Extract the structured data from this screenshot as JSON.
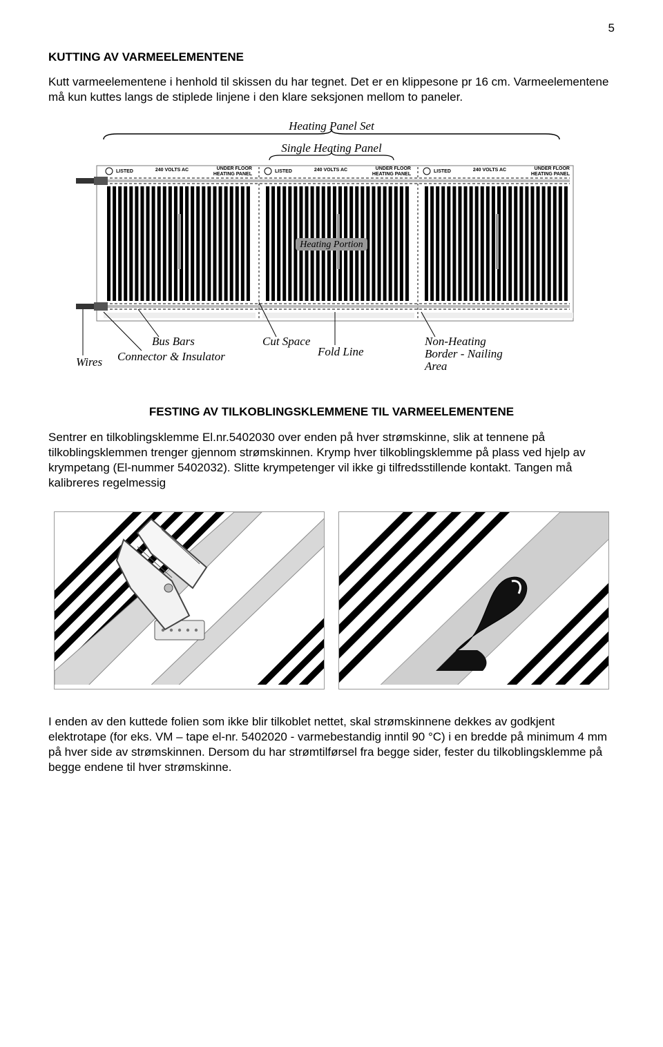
{
  "page_number": "5",
  "section1": {
    "title": "KUTTING AV VARMEELEMENTENE",
    "para": "Kutt varmeelementene i henhold til skissen du har tegnet. Det er en klippesone pr 16 cm. Varmeelementene må kun kuttes langs de stiplede linjene i den klare seksjonen mellom to paneler."
  },
  "diagram1": {
    "top_label": "Heating Panel Set",
    "sub_label": "Single Heating Panel",
    "center_label": "Heating Portion",
    "panel_header": {
      "volts": "240 VOLTS AC",
      "under": "UNDER FLOOR",
      "heating": "HEATING PANEL",
      "listed": "LISTED"
    },
    "bottom_labels": {
      "wires": "Wires",
      "bus_bars": "Bus Bars",
      "connector": "Connector & Insulator",
      "cut_space": "Cut Space",
      "fold_line": "Fold Line",
      "non_heating": "Non-Heating",
      "border": "Border - Nailing",
      "area": "Area"
    },
    "bar_color": "#000000",
    "border_color": "#888888",
    "background": "#ffffff"
  },
  "section2": {
    "title": "FESTING AV TILKOBLINGSKLEMMENE TIL VARMEELEMENTENE",
    "para": "Sentrer en tilkoblingsklemme El.nr.5402030 over enden på hver strømskinne, slik at tennene på tilkoblingsklemmen trenger gjennom strømskinnen. Krymp hver tilkoblingsklemme på plass ved hjelp av krympetang (El-nummer 5402032). Slitte krympetenger vil ikke gi tilfredsstillende kontakt. Tangen må kalibreres regelmessig"
  },
  "section3": {
    "para": "I enden av den kuttede folien som ikke blir tilkoblet nettet, skal strømskinnene dekkes av godkjent elektrotape (for eks. VM – tape el-nr. 5402020 - varmebestandig inntil 90 °C) i en bredde på minimum 4 mm på hver side av strømskinnen. Dersom du har strømtilførsel fra begge sider, fester du tilkoblingsklemme på begge endene til hver strømskinne."
  }
}
